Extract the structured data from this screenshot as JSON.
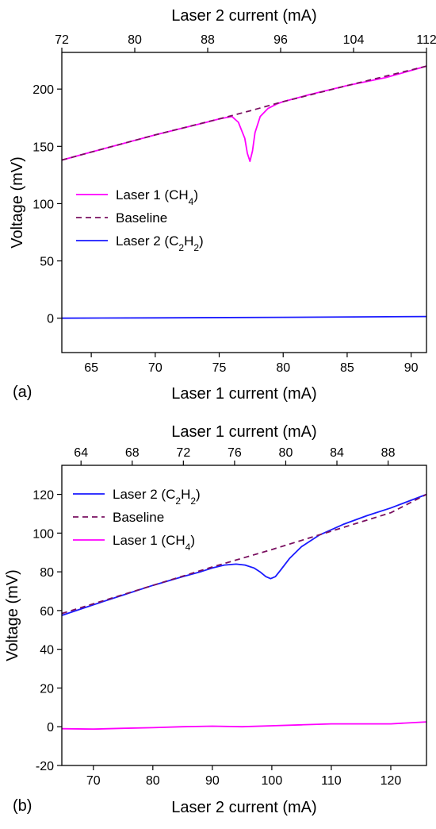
{
  "chart_data": [
    {
      "panel_label": "(a)",
      "type": "line",
      "xlabel": "Laser 1 current (mA)",
      "x2label": "Laser 2 current (mA)",
      "ylabel": "Voltage (mV)",
      "xlim": [
        62.7,
        91.2
      ],
      "ylim": [
        -30,
        232
      ],
      "x2lim": [
        72,
        112
      ],
      "xticks": [
        65,
        70,
        75,
        80,
        85,
        90
      ],
      "x2ticks": [
        72,
        80,
        88,
        96,
        104,
        112
      ],
      "yticks": [
        0,
        50,
        100,
        150,
        200
      ],
      "grid": false,
      "legend_position": "center-left",
      "colors": {
        "laser1": "#ff00ff",
        "laser2": "#1a1aff",
        "baseline": "#7a1060"
      },
      "legend": [
        {
          "key": "laser1",
          "label": "Laser 1 (CH",
          "sub": "4",
          "tail": ")"
        },
        {
          "key": "baseline",
          "label": "Baseline",
          "sub": "",
          "tail": ""
        },
        {
          "key": "laser2",
          "label": "Laser 2 (C",
          "sub": "2",
          "mid": "H",
          "sub2": "2",
          "tail": ")"
        }
      ],
      "series": [
        {
          "name": "Laser 1 (CH4)",
          "key": "laser1",
          "style": "solid",
          "x": [
            62.7,
            65,
            67,
            70,
            72,
            74,
            75,
            76,
            76.5,
            77,
            77.2,
            77.4,
            77.6,
            77.8,
            78.2,
            78.8,
            79.5,
            80,
            82,
            85,
            88,
            91.2
          ],
          "y": [
            138,
            145,
            151,
            160,
            165.5,
            171,
            174,
            176,
            171,
            157,
            144,
            137,
            146,
            162,
            176,
            183,
            187,
            189,
            195,
            203,
            210,
            220
          ]
        },
        {
          "name": "Baseline",
          "key": "baseline",
          "style": "dashed",
          "x": [
            62.7,
            65,
            70,
            75,
            77.4,
            80,
            85,
            91.2
          ],
          "y": [
            138,
            145,
            160,
            174,
            181,
            189,
            203,
            220
          ]
        },
        {
          "name": "Laser 2 (C2H2)",
          "key": "laser2",
          "style": "solid",
          "x": [
            62.7,
            70,
            80,
            91.2
          ],
          "y": [
            0,
            0.3,
            0.8,
            1.5
          ]
        }
      ]
    },
    {
      "panel_label": "(b)",
      "type": "line",
      "xlabel": "Laser 2 current (mA)",
      "x2label": "Laser 1 current (mA)",
      "ylabel": "Voltage (mV)",
      "xlim": [
        64.7,
        126
      ],
      "ylim": [
        -20,
        135
      ],
      "x2lim": [
        62.5,
        91
      ],
      "xticks": [
        70,
        80,
        90,
        100,
        110,
        120
      ],
      "x2ticks": [
        64,
        68,
        72,
        76,
        80,
        84,
        88
      ],
      "yticks": [
        -20,
        0,
        20,
        40,
        60,
        80,
        100,
        120
      ],
      "grid": false,
      "legend_position": "top-left",
      "colors": {
        "laser1": "#ff00ff",
        "laser2": "#1a1aff",
        "baseline": "#7a1060"
      },
      "legend": [
        {
          "key": "laser2",
          "label": "Laser 2 (C",
          "sub": "2",
          "mid": "H",
          "sub2": "2",
          "tail": ")"
        },
        {
          "key": "baseline",
          "label": "Baseline",
          "sub": "",
          "tail": ""
        },
        {
          "key": "laser1",
          "label": "Laser 1 (CH",
          "sub": "4",
          "tail": ")"
        }
      ],
      "series": [
        {
          "name": "Laser 2 (C2H2)",
          "key": "laser2",
          "style": "solid",
          "x": [
            64.7,
            70,
            75,
            80,
            85,
            88,
            90,
            92,
            94,
            95.5,
            97,
            98,
            99,
            99.8,
            100.6,
            101.5,
            103,
            105,
            108,
            112,
            116,
            120,
            126
          ],
          "y": [
            57.5,
            63,
            68,
            73,
            77.5,
            80,
            82,
            83.5,
            84,
            83.5,
            82,
            80,
            77.5,
            76.5,
            77.5,
            81,
            87,
            93,
            99,
            104.5,
            109,
            113,
            120
          ]
        },
        {
          "name": "Baseline",
          "key": "baseline",
          "style": "dashed",
          "x": [
            64.7,
            70,
            80,
            90,
            100,
            110,
            120,
            126
          ],
          "y": [
            58.5,
            63.5,
            73,
            82.5,
            91.5,
            101,
            110.5,
            120
          ]
        },
        {
          "name": "Laser 1 (CH4)",
          "key": "laser1",
          "style": "solid",
          "x": [
            64.7,
            70,
            75,
            80,
            85,
            90,
            95,
            100,
            105,
            110,
            115,
            120,
            126
          ],
          "y": [
            -1,
            -1.2,
            -0.8,
            -0.5,
            0,
            0.3,
            0,
            0.5,
            1,
            1.5,
            1.5,
            1.5,
            2.5
          ]
        }
      ]
    }
  ]
}
